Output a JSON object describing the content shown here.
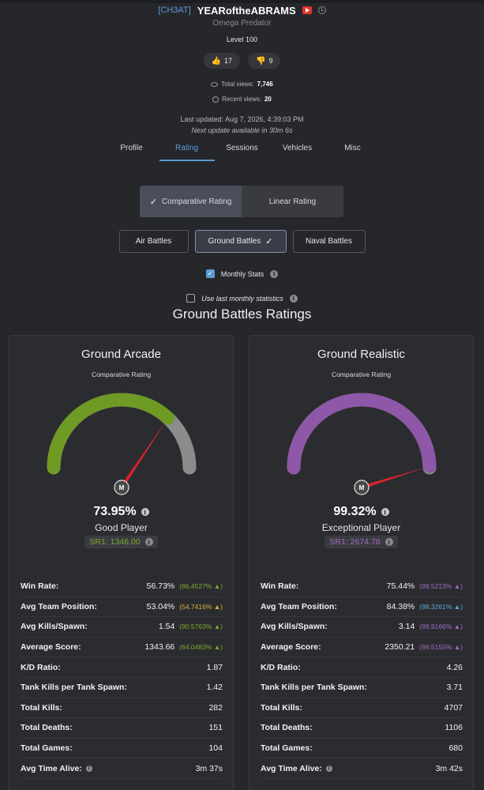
{
  "header": {
    "clan_tag": "[CH3AT]",
    "username": "YEARoftheABRAMS",
    "title": "Omega Predator",
    "level": "Level 100",
    "likes": "17",
    "dislikes": "9",
    "total_views_label": "Total views:",
    "total_views": "7,746",
    "recent_views_label": "Recent views:",
    "recent_views": "20",
    "last_updated": "Last updated: Aug 7, 2026, 4:39:03 PM",
    "next_update": "Next update available in 30m 6s"
  },
  "tabs": [
    {
      "label": "Profile",
      "active": false
    },
    {
      "label": "Rating",
      "active": true
    },
    {
      "label": "Sessions",
      "active": false
    },
    {
      "label": "Vehicles",
      "active": false
    },
    {
      "label": "Misc",
      "active": false
    }
  ],
  "rating_toggle": {
    "comparative": "Comparative Rating",
    "linear": "Linear Rating"
  },
  "modes": {
    "air": "Air Battles",
    "ground": "Ground Battles",
    "naval": "Naval Battles"
  },
  "options": {
    "monthly": "Monthly Stats",
    "last_monthly": "Use last monthly statistics"
  },
  "section_title": "Ground Battles Ratings",
  "cards": [
    {
      "title": "Ground Arcade",
      "subtitle": "Comparative Rating",
      "gauge_fraction": 0.7395,
      "gauge_color": "#6f9a24",
      "percent": "73.95%",
      "rank": "Good Player",
      "sr": "SR1: 1346.00",
      "sr_color": "#7cab2c",
      "stats": [
        {
          "label": "Win Rate:",
          "value": "56.73%",
          "pct": "(86.4527% ▲)",
          "pct_color": "#7cab2c"
        },
        {
          "label": "Avg Team Position:",
          "value": "53.04%",
          "pct": "(54.7416% ▲)",
          "pct_color": "#d9b43a"
        },
        {
          "label": "Avg Kills/Spawn:",
          "value": "1.54",
          "pct": "(90.5763% ▲)",
          "pct_color": "#7cab2c"
        },
        {
          "label": "Average Score:",
          "value": "1343.66",
          "pct": "(64.0483% ▲)",
          "pct_color": "#7cab2c"
        },
        {
          "label": "K/D Ratio:",
          "value": "1.87",
          "pct": "",
          "pct_color": ""
        },
        {
          "label": "Tank Kills per Tank Spawn:",
          "value": "1.42",
          "pct": "",
          "pct_color": ""
        },
        {
          "label": "Total Kills:",
          "value": "282",
          "pct": "",
          "pct_color": ""
        },
        {
          "label": "Total Deaths:",
          "value": "151",
          "pct": "",
          "pct_color": ""
        },
        {
          "label": "Total Games:",
          "value": "104",
          "pct": "",
          "pct_color": ""
        },
        {
          "label": "Avg Time Alive:",
          "value": "3m 37s",
          "pct": "",
          "pct_color": "",
          "info": true
        }
      ]
    },
    {
      "title": "Ground Realistic",
      "subtitle": "Comparative Rating",
      "gauge_fraction": 0.9932,
      "gauge_color": "#8e57a8",
      "percent": "99.32%",
      "rank": "Exceptional Player",
      "sr": "SR1: 2674.78",
      "sr_color": "#a06cc0",
      "stats": [
        {
          "label": "Win Rate:",
          "value": "75.44%",
          "pct": "(99.5213% ▲)",
          "pct_color": "#a06cc0"
        },
        {
          "label": "Avg Team Position:",
          "value": "84.38%",
          "pct": "(98.3261% ▲)",
          "pct_color": "#5ba8d5"
        },
        {
          "label": "Avg Kills/Spawn:",
          "value": "3.14",
          "pct": "(99.9166% ▲)",
          "pct_color": "#a06cc0"
        },
        {
          "label": "Average Score:",
          "value": "2350.21",
          "pct": "(99.5155% ▲)",
          "pct_color": "#a06cc0"
        },
        {
          "label": "K/D Ratio:",
          "value": "4.26",
          "pct": "",
          "pct_color": ""
        },
        {
          "label": "Tank Kills per Tank Spawn:",
          "value": "3.71",
          "pct": "",
          "pct_color": ""
        },
        {
          "label": "Total Kills:",
          "value": "4707",
          "pct": "",
          "pct_color": ""
        },
        {
          "label": "Total Deaths:",
          "value": "1106",
          "pct": "",
          "pct_color": ""
        },
        {
          "label": "Total Games:",
          "value": "680",
          "pct": "",
          "pct_color": ""
        },
        {
          "label": "Avg Time Alive:",
          "value": "3m 42s",
          "pct": "",
          "pct_color": "",
          "info": true
        }
      ]
    }
  ],
  "needle_hub_label": "M"
}
